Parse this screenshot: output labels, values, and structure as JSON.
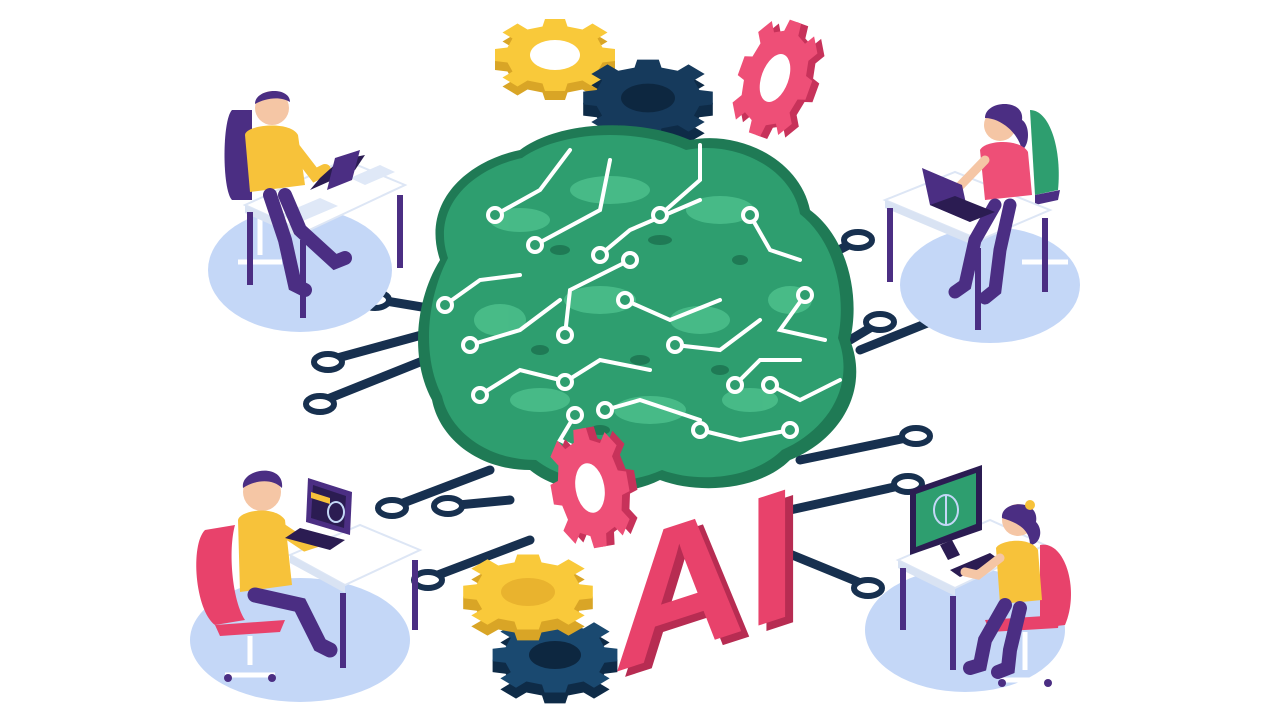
{
  "illustration": {
    "center_text": "AI",
    "colors": {
      "brain": "#2e9e6f",
      "brain_light": "#4cbf8c",
      "brain_dark": "#1f7a55",
      "circuit_line": "#ffffff",
      "gear_yellow": "#f9c93a",
      "gear_navy": "#163a5c",
      "gear_pink": "#ee4f77",
      "ai_pink": "#e8426b",
      "desk_pad": "#c4d7f7",
      "wire": "#17304f",
      "skin": "#f5c6a5",
      "shirt_yellow": "#f7c23a",
      "shirt_pink": "#ee4f77",
      "pants_purple": "#4b2e83",
      "chair_pink": "#e8426b",
      "chair_purple": "#4b2e83"
    },
    "icons": [
      "brain-icon",
      "gear-icon",
      "laptop-icon",
      "monitor-icon",
      "person-icon",
      "circuit-icon"
    ]
  }
}
